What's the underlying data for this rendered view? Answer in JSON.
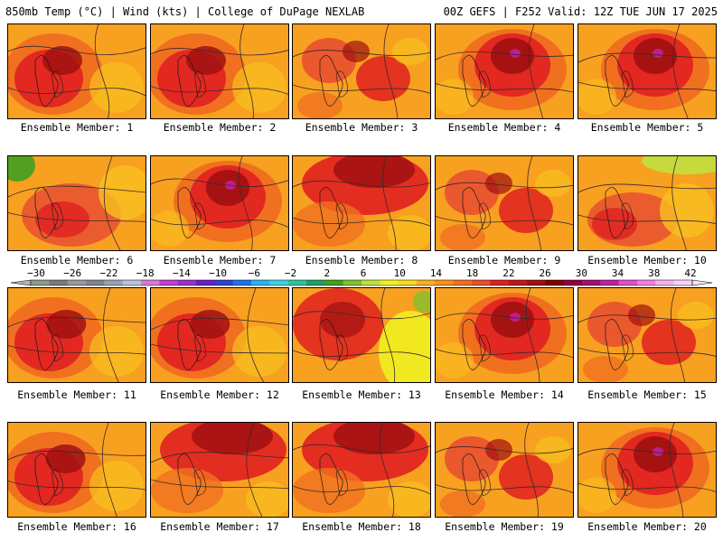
{
  "header": {
    "left": "850mb Temp (°C) | Wind (kts) | College of DuPage NEXLAB",
    "right": "00Z GEFS | F252 Valid: 12Z TUE JUN 17 2025"
  },
  "members": [
    {
      "label": "Ensemble Member: 1",
      "pattern": "west-heat"
    },
    {
      "label": "Ensemble Member: 2",
      "pattern": "west-heat"
    },
    {
      "label": "Ensemble Member: 3",
      "pattern": "scattered"
    },
    {
      "label": "Ensemble Member: 4",
      "pattern": "central-ridge"
    },
    {
      "label": "Ensemble Member: 5",
      "pattern": "central-ridge"
    },
    {
      "label": "Ensemble Member: 6",
      "pattern": "cool-northwest"
    },
    {
      "label": "Ensemble Member: 7",
      "pattern": "central-ridge"
    },
    {
      "label": "Ensemble Member: 8",
      "pattern": "north-heat"
    },
    {
      "label": "Ensemble Member: 9",
      "pattern": "scattered"
    },
    {
      "label": "Ensemble Member: 10",
      "pattern": "cool-north"
    },
    {
      "label": "Ensemble Member: 11",
      "pattern": "west-heat"
    },
    {
      "label": "Ensemble Member: 12",
      "pattern": "west-heat"
    },
    {
      "label": "Ensemble Member: 13",
      "pattern": "east-cool"
    },
    {
      "label": "Ensemble Member: 14",
      "pattern": "central-ridge"
    },
    {
      "label": "Ensemble Member: 15",
      "pattern": "scattered"
    },
    {
      "label": "Ensemble Member: 16",
      "pattern": "west-heat"
    },
    {
      "label": "Ensemble Member: 17",
      "pattern": "north-heat"
    },
    {
      "label": "Ensemble Member: 18",
      "pattern": "north-heat"
    },
    {
      "label": "Ensemble Member: 19",
      "pattern": "scattered"
    },
    {
      "label": "Ensemble Member: 20",
      "pattern": "central-ridge"
    }
  ],
  "colorbar": {
    "ticks": [
      "−30",
      "−26",
      "−22",
      "−18",
      "−14",
      "−10",
      "−6",
      "−2",
      "2",
      "6",
      "10",
      "14",
      "18",
      "22",
      "26",
      "30",
      "34",
      "38",
      "42"
    ],
    "colors": [
      "#8c9c8c",
      "#7a7a7a",
      "#999999",
      "#7f8690",
      "#9aa0b4",
      "#bcc0d8",
      "#d47ad4",
      "#c040d0",
      "#9a30c8",
      "#6a20c0",
      "#3040d0",
      "#2070e8",
      "#30b0f0",
      "#40d0e0",
      "#30c0a0",
      "#20a060",
      "#40a020",
      "#80c030",
      "#c0e040",
      "#f0f020",
      "#f8d820",
      "#f8b020",
      "#f89020",
      "#f07020",
      "#e85030",
      "#e02020",
      "#c01818",
      "#a01010",
      "#800000",
      "#900040",
      "#a01070",
      "#c020a0",
      "#e050c8",
      "#f080e0",
      "#f8b0f0",
      "#f8d0f8"
    ]
  }
}
